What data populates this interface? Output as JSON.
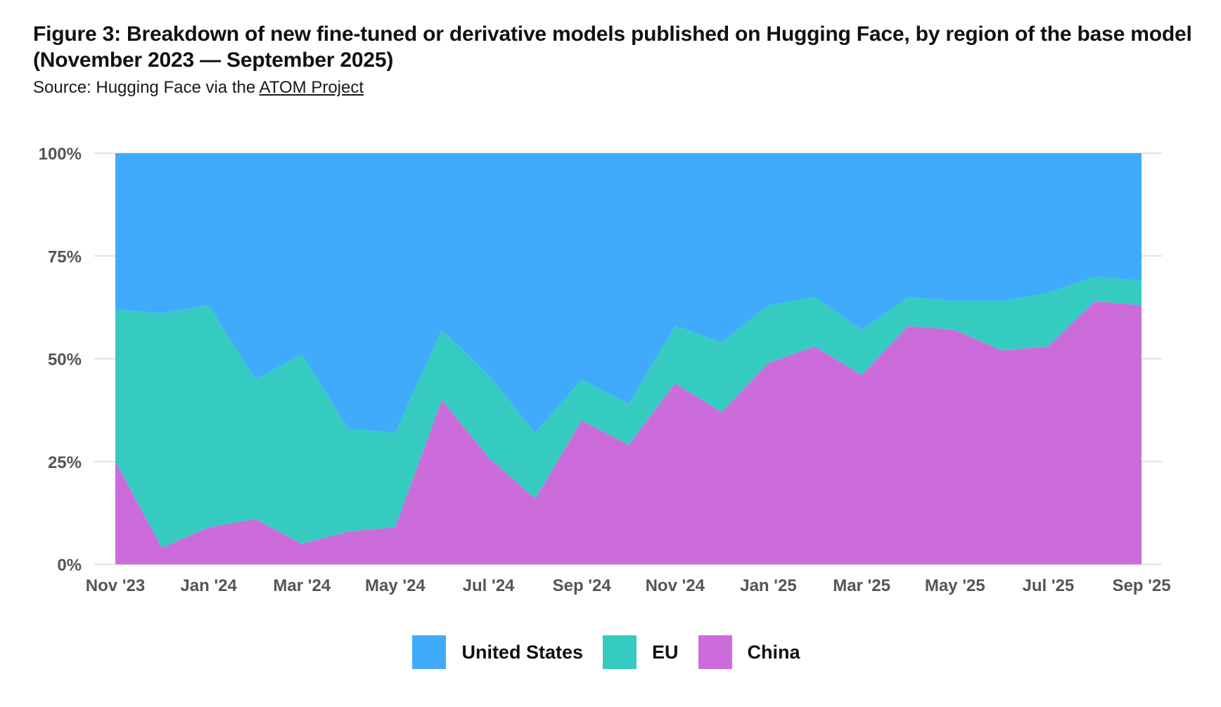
{
  "header": {
    "title": "Figure 3: Breakdown of new fine-tuned or derivative models published on Hugging Face, by region of the base model (November 2023 — September 2025)",
    "source_prefix": "Source: Hugging Face via the ",
    "source_link": "ATOM Project"
  },
  "chart_data": {
    "type": "area",
    "stacked": true,
    "x": [
      "2023-11",
      "2023-12",
      "2024-01",
      "2024-02",
      "2024-03",
      "2024-04",
      "2024-05",
      "2024-06",
      "2024-07",
      "2024-08",
      "2024-09",
      "2024-10",
      "2024-11",
      "2024-12",
      "2025-01",
      "2025-02",
      "2025-03",
      "2025-04",
      "2025-05",
      "2025-06",
      "2025-07",
      "2025-08",
      "2025-09"
    ],
    "x_tick_labels": [
      "Nov '23",
      "Jan '24",
      "Mar '24",
      "May '24",
      "Jul '24",
      "Sep '24",
      "Nov '24",
      "Jan '25",
      "Mar '25",
      "May '25",
      "Jul '25",
      "Sep '25"
    ],
    "x_tick_months": [
      "2023-11",
      "2024-01",
      "2024-03",
      "2024-05",
      "2024-07",
      "2024-09",
      "2024-11",
      "2025-01",
      "2025-03",
      "2025-05",
      "2025-07",
      "2025-09"
    ],
    "y_ticks": [
      "0%",
      "25%",
      "50%",
      "75%",
      "100%"
    ],
    "ylim": [
      0,
      100
    ],
    "grid": true,
    "legend_position": "bottom",
    "series": [
      {
        "name": "China",
        "color": "#cc6cdb",
        "values": [
          25,
          4,
          9,
          11,
          5,
          8,
          9,
          40,
          26,
          16,
          35,
          29,
          44,
          37,
          49,
          53,
          46,
          58,
          57,
          52,
          53,
          64,
          63
        ]
      },
      {
        "name": "EU",
        "color": "#35cbc1",
        "values": [
          37,
          57,
          54,
          34,
          46,
          25,
          23,
          17,
          20,
          16,
          10,
          10,
          14,
          17,
          14,
          12,
          11,
          7,
          7,
          12,
          13,
          6,
          6
        ]
      },
      {
        "name": "United States",
        "color": "#41abfb",
        "values": [
          38,
          39,
          37,
          55,
          49,
          67,
          68,
          43,
          54,
          68,
          55,
          61,
          42,
          46,
          37,
          35,
          43,
          35,
          36,
          36,
          34,
          30,
          31
        ]
      }
    ],
    "legend_order": [
      "United States",
      "EU",
      "China"
    ]
  }
}
